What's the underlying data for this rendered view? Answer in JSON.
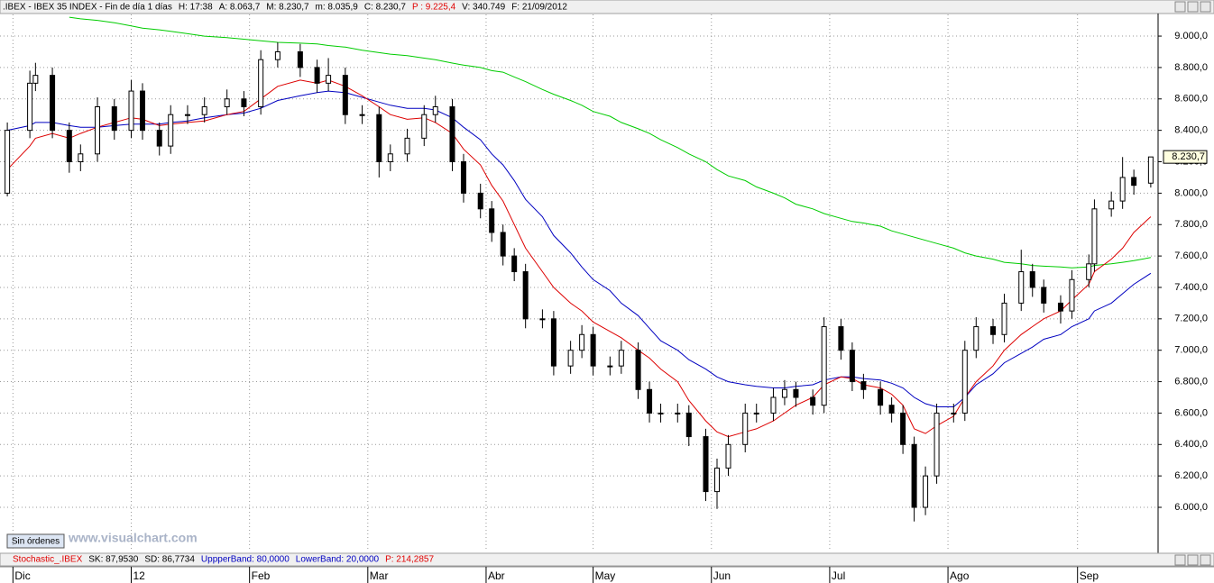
{
  "chart_data": {
    "type": "candlestick",
    "header": [
      {
        "text": ".IBEX - IBEX 35 INDEX - Fin de día 1 días",
        "color": "#000000"
      },
      {
        "text": "H: 17:38",
        "color": "#000000"
      },
      {
        "text": "A: 8.063,7",
        "color": "#000000"
      },
      {
        "text": "M: 8.230,7",
        "color": "#000000"
      },
      {
        "text": "m: 8.035,9",
        "color": "#000000"
      },
      {
        "text": "C: 8.230,7",
        "color": "#000000"
      },
      {
        "text": "P : 9.225,4",
        "color": "#e00000"
      },
      {
        "text": "V: 340.749",
        "color": "#000000"
      },
      {
        "text": "F: 21/09/2012",
        "color": "#000000"
      }
    ],
    "indicator_header": [
      {
        "text": "Stochastic_.IBEX",
        "color": "#e00000"
      },
      {
        "text": "SK: 87,9530",
        "color": "#000000"
      },
      {
        "text": "SD: 86,7734",
        "color": "#000000"
      },
      {
        "text": "UppperBand: 80,0000",
        "color": "#0000c0"
      },
      {
        "text": "LowerBand: 20,0000",
        "color": "#0000c0"
      },
      {
        "text": "P: 214,2857",
        "color": "#e00000"
      }
    ],
    "last_label": "8.230,7",
    "watermark": "www.visualchart.com",
    "button": "Sin órdenes",
    "x": [
      0,
      4,
      5,
      8,
      11,
      13,
      16,
      19,
      22,
      24,
      27,
      29,
      32,
      35,
      39,
      42,
      45,
      48,
      52,
      55,
      57,
      60,
      63,
      66,
      68,
      71,
      74,
      76,
      79,
      81,
      84,
      86,
      88,
      90,
      92,
      95,
      97,
      100,
      102,
      104,
      107,
      109,
      112,
      114,
      116,
      119,
      121,
      124,
      126,
      128,
      131,
      133,
      136,
      138,
      140,
      143,
      145,
      148,
      150,
      152,
      155,
      157,
      159,
      161,
      163,
      165,
      168,
      170,
      172,
      175,
      177,
      180,
      182,
      184,
      187,
      189,
      192,
      193,
      196,
      198,
      200,
      203
    ],
    "open": [
      8000,
      8400,
      8700,
      8750,
      8400,
      8200,
      8250,
      8550,
      8400,
      8650,
      8400,
      8300,
      8500,
      8500,
      8550,
      8600,
      8550,
      8850,
      8900,
      8800,
      8700,
      8750,
      8500,
      8500,
      8200,
      8250,
      8350,
      8500,
      8550,
      8200,
      8000,
      7900,
      7750,
      7600,
      7500,
      7200,
      7200,
      6900,
      7000,
      7100,
      6900,
      6900,
      7000,
      6750,
      6600,
      6600,
      6600,
      6450,
      6100,
      6250,
      6400,
      6600,
      6600,
      6700,
      6750,
      6700,
      6650,
      7150,
      7000,
      6800,
      6750,
      6650,
      6600,
      6400,
      6000,
      6200,
      6600,
      6600,
      7000,
      7150,
      7100,
      7300,
      7500,
      7400,
      7300,
      7250,
      7450,
      7550,
      7900,
      7950,
      8100,
      8063.7
    ],
    "high": [
      8450,
      8780,
      8830,
      8800,
      8450,
      8310,
      8610,
      8600,
      8720,
      8700,
      8450,
      8560,
      8560,
      8610,
      8660,
      8650,
      8910,
      8960,
      8950,
      8850,
      8860,
      8800,
      8560,
      8550,
      8310,
      8410,
      8560,
      8620,
      8600,
      8250,
      8060,
      7950,
      7800,
      7650,
      7550,
      7260,
      7250,
      7060,
      7160,
      7150,
      6960,
      7060,
      7050,
      6800,
      6660,
      6660,
      6650,
      6500,
      6310,
      6460,
      6660,
      6660,
      6760,
      6810,
      6800,
      6750,
      7210,
      7200,
      7050,
      6850,
      6800,
      6700,
      6650,
      6450,
      6260,
      6660,
      6660,
      7060,
      7210,
      7200,
      7360,
      7640,
      7550,
      7450,
      7350,
      7510,
      7610,
      7960,
      8010,
      8230,
      8150,
      8230.7
    ],
    "low": [
      7980,
      8350,
      8650,
      8350,
      8130,
      8140,
      8200,
      8340,
      8350,
      8340,
      8240,
      8250,
      8440,
      8450,
      8500,
      8490,
      8500,
      8800,
      8740,
      8640,
      8650,
      8440,
      8440,
      8100,
      8140,
      8200,
      8300,
      8450,
      8140,
      7940,
      7840,
      7690,
      7540,
      7440,
      7140,
      7140,
      6840,
      6850,
      6950,
      6840,
      6840,
      6850,
      6690,
      6540,
      6540,
      6540,
      6390,
      6040,
      5990,
      6200,
      6350,
      6540,
      6550,
      6650,
      6640,
      6590,
      6600,
      6940,
      6740,
      6690,
      6590,
      6540,
      6340,
      5910,
      5950,
      6150,
      6540,
      6550,
      6950,
      7040,
      7050,
      7250,
      7340,
      7240,
      7170,
      7200,
      7400,
      7500,
      7850,
      7900,
      7990,
      8035.9
    ],
    "close": [
      8400,
      8700,
      8750,
      8400,
      8200,
      8250,
      8550,
      8400,
      8650,
      8400,
      8300,
      8500,
      8500,
      8550,
      8600,
      8550,
      8850,
      8900,
      8800,
      8700,
      8750,
      8500,
      8500,
      8200,
      8250,
      8350,
      8500,
      8550,
      8200,
      8000,
      7900,
      7750,
      7600,
      7500,
      7200,
      7200,
      6900,
      7000,
      7100,
      6900,
      6900,
      7000,
      6750,
      6600,
      6600,
      6600,
      6450,
      6100,
      6250,
      6400,
      6600,
      6600,
      6700,
      6750,
      6700,
      6650,
      7150,
      7000,
      6800,
      6750,
      6650,
      6600,
      6400,
      6000,
      6200,
      6600,
      6600,
      7000,
      7150,
      7100,
      7300,
      7500,
      7400,
      7300,
      7250,
      7450,
      7550,
      7900,
      7950,
      8100,
      8050,
      8230.7
    ],
    "series": [
      {
        "color": "#00cc00",
        "values": [
          null,
          null,
          null,
          null,
          9120,
          9110,
          9100,
          9085,
          9065,
          9050,
          9040,
          9030,
          9015,
          9000,
          8990,
          8980,
          8970,
          8960,
          8955,
          8950,
          8940,
          8930,
          8910,
          8895,
          8885,
          8875,
          8860,
          8850,
          8828,
          8815,
          8800,
          8780,
          8770,
          8740,
          8710,
          8660,
          8630,
          8590,
          8560,
          8520,
          8490,
          8450,
          8410,
          8380,
          8340,
          8290,
          8250,
          8200,
          8150,
          8110,
          8080,
          8040,
          8000,
          7970,
          7930,
          7900,
          7870,
          7840,
          7820,
          7810,
          7790,
          7760,
          7740,
          7720,
          7700,
          7680,
          7650,
          7620,
          7600,
          7580,
          7560,
          7550,
          7540,
          7535,
          7530,
          7525,
          7530,
          7540,
          7550,
          7560,
          7570,
          7590
        ]
      },
      {
        "color": "#0000c0",
        "values": [
          8400,
          8430,
          8450,
          8450,
          8430,
          8420,
          8420,
          8430,
          8440,
          8440,
          8440,
          8450,
          8460,
          8480,
          8500,
          8510,
          8540,
          8590,
          8620,
          8640,
          8650,
          8640,
          8610,
          8580,
          8560,
          8540,
          8540,
          8530,
          8480,
          8420,
          8340,
          8250,
          8180,
          8080,
          7960,
          7850,
          7730,
          7620,
          7530,
          7450,
          7380,
          7300,
          7220,
          7140,
          7060,
          7000,
          6940,
          6880,
          6830,
          6800,
          6780,
          6770,
          6760,
          6760,
          6770,
          6780,
          6810,
          6830,
          6830,
          6820,
          6810,
          6790,
          6760,
          6700,
          6660,
          6640,
          6640,
          6700,
          6780,
          6850,
          6920,
          6980,
          7020,
          7070,
          7100,
          7150,
          7200,
          7250,
          7300,
          7360,
          7420,
          7490
        ]
      },
      {
        "color": "#dd0000",
        "values": [
          8150,
          8300,
          8350,
          8380,
          8350,
          8380,
          8420,
          8450,
          8480,
          8470,
          8430,
          8440,
          8450,
          8460,
          8500,
          8520,
          8600,
          8680,
          8720,
          8700,
          8720,
          8680,
          8620,
          8550,
          8500,
          8470,
          8480,
          8450,
          8380,
          8280,
          8180,
          8050,
          7950,
          7800,
          7650,
          7500,
          7400,
          7300,
          7250,
          7180,
          7120,
          7080,
          7000,
          6950,
          6880,
          6800,
          6680,
          6550,
          6480,
          6450,
          6480,
          6500,
          6550,
          6600,
          6650,
          6700,
          6780,
          6830,
          6820,
          6780,
          6760,
          6720,
          6650,
          6500,
          6470,
          6520,
          6580,
          6700,
          6800,
          6900,
          7000,
          7100,
          7150,
          7200,
          7250,
          7320,
          7420,
          7500,
          7580,
          7650,
          7750,
          7850
        ]
      }
    ],
    "xlim": [
      -1.3,
      204.3
    ],
    "ylim": [
      5719,
      9138
    ],
    "xticks": [
      {
        "value": 1,
        "label": "Dic"
      },
      {
        "value": 22,
        "label": "12"
      },
      {
        "value": 43,
        "label": "Feb"
      },
      {
        "value": 64,
        "label": "Mar"
      },
      {
        "value": 85,
        "label": "Abr"
      },
      {
        "value": 104,
        "label": "May"
      },
      {
        "value": 125,
        "label": "Jun"
      },
      {
        "value": 146,
        "label": "Jul"
      },
      {
        "value": 167,
        "label": "Ago"
      },
      {
        "value": 190,
        "label": "Sep"
      }
    ],
    "yticks": [
      {
        "value": 6000,
        "label": "6.000,0"
      },
      {
        "value": 6200,
        "label": "6.200,0"
      },
      {
        "value": 6400,
        "label": "6.400,0"
      },
      {
        "value": 6600,
        "label": "6.600,0"
      },
      {
        "value": 6800,
        "label": "6.800,0"
      },
      {
        "value": 7000,
        "label": "7.000,0"
      },
      {
        "value": 7200,
        "label": "7.200,0"
      },
      {
        "value": 7400,
        "label": "7.400,0"
      },
      {
        "value": 7600,
        "label": "7.600,0"
      },
      {
        "value": 7800,
        "label": "7.800,0"
      },
      {
        "value": 8000,
        "label": "8.000,0"
      },
      {
        "value": 8200,
        "label": "8.200,0"
      },
      {
        "value": 8400,
        "label": "8.400,0"
      },
      {
        "value": 8600,
        "label": "8.600,0"
      },
      {
        "value": 8800,
        "label": "8.800,0"
      },
      {
        "value": 9000,
        "label": "9.000,0"
      }
    ],
    "grid": true
  }
}
